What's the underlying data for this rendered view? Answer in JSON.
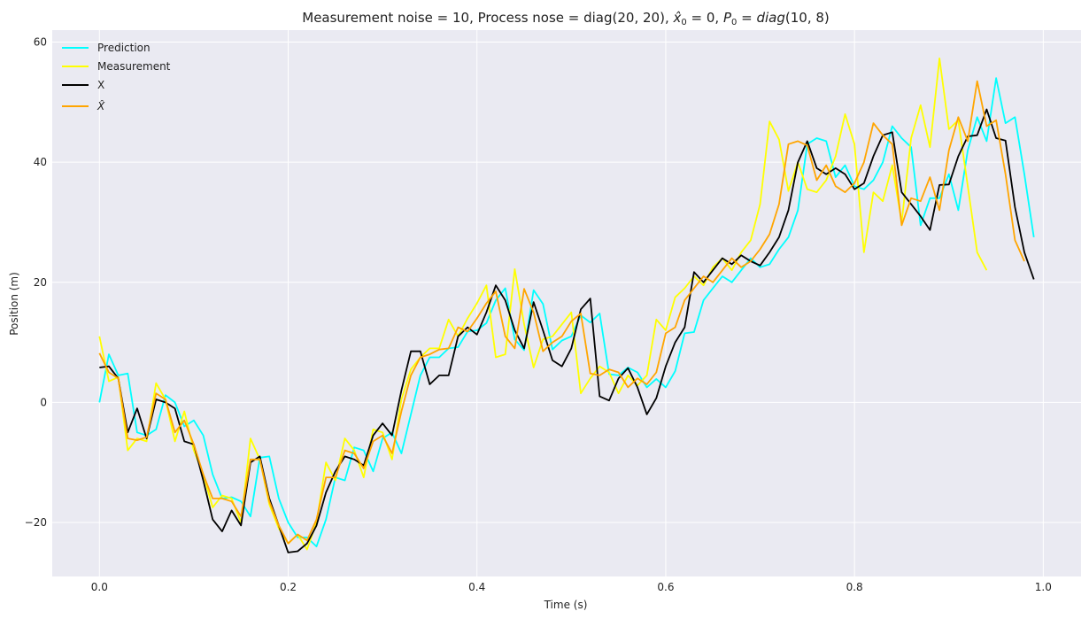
{
  "chart_data": {
    "type": "line",
    "title_parts": [
      "Measurement noise = 10, Process nose = diag(20, 20), ",
      "x̂",
      "0",
      " = 0, ",
      "P",
      "0",
      " = ",
      "diag",
      "(10, 8)"
    ],
    "xlabel": "Time (s)",
    "ylabel": "Position (m)",
    "xlim": [
      -0.05,
      1.04
    ],
    "ylim": [
      -29,
      62
    ],
    "xticks": [
      0.0,
      0.2,
      0.4,
      0.6,
      0.8,
      1.0
    ],
    "xtick_labels": [
      "0.0",
      "0.2",
      "0.4",
      "0.6",
      "0.8",
      "1.0"
    ],
    "yticks": [
      -20,
      0,
      20,
      40,
      60
    ],
    "ytick_labels": [
      "−20",
      "0",
      "20",
      "40",
      "60"
    ],
    "grid": true,
    "legend_position": "top-left",
    "background": "#eaeaf2",
    "series": [
      {
        "name": "Prediction",
        "color": "#00ffff",
        "legend_label": "Prediction",
        "values": [
          0.0,
          8.0,
          4.5,
          4.8,
          -5.0,
          -5.5,
          -4.5,
          1.2,
          0.0,
          -4.0,
          -3.0,
          -5.5,
          -12.0,
          -16.0,
          -15.8,
          -16.5,
          -19.0,
          -9.2,
          -9.0,
          -16.0,
          -20.0,
          -22.5,
          -22.5,
          -24.0,
          -19.5,
          -12.5,
          -13.0,
          -7.5,
          -8.0,
          -11.5,
          -6.0,
          -5.0,
          -8.5,
          -2.0,
          4.5,
          7.5,
          7.5,
          9.0,
          9.2,
          11.8,
          12.0,
          13.2,
          17.0,
          19.0,
          10.5,
          8.7,
          18.7,
          16.4,
          8.8,
          10.3,
          11.0,
          14.5,
          13.3,
          14.8,
          4.7,
          4.5,
          5.8,
          5.0,
          2.5,
          3.9,
          2.5,
          5.2,
          11.5,
          11.7,
          17.0,
          19.0,
          21.0,
          20.0,
          22.0,
          24.0,
          22.5,
          23.0,
          25.5,
          27.5,
          32.0,
          43.0,
          44.0,
          43.5,
          37.5,
          39.5,
          36.0,
          35.5,
          37.0,
          40.0,
          46.0,
          44.0,
          42.5,
          29.5,
          34.0,
          34.0,
          38.0,
          32.0,
          42.0,
          47.5,
          43.5,
          54.0,
          46.5,
          47.5,
          38.0,
          27.5
        ]
      },
      {
        "name": "Measurement",
        "color": "#ffff00",
        "legend_label": "Measurement",
        "values": [
          11.0,
          3.5,
          4.2,
          -8.0,
          -6.0,
          -6.5,
          3.2,
          0.5,
          -6.5,
          -1.5,
          -8.0,
          -12.0,
          -17.5,
          -15.5,
          -16.0,
          -20.0,
          -6.0,
          -9.5,
          -17.0,
          -21.0,
          -23.5,
          -22.0,
          -24.5,
          -20.0,
          -10.0,
          -13.0,
          -6.0,
          -8.0,
          -12.5,
          -4.5,
          -5.0,
          -9.5,
          0.5,
          5.5,
          7.5,
          9.0,
          9.0,
          13.8,
          11.0,
          14.0,
          16.5,
          19.5,
          7.5,
          8.0,
          22.2,
          13.0,
          5.8,
          10.5,
          11.0,
          13.0,
          15.0,
          1.5,
          4.0,
          6.0,
          5.0,
          1.5,
          4.5,
          2.8,
          4.5,
          13.8,
          12.0,
          17.5,
          19.0,
          21.0,
          19.5,
          22.5,
          24.0,
          22.0,
          25.0,
          27.0,
          33.0,
          46.8,
          43.8,
          35.2,
          40.0,
          35.5,
          35.0,
          37.0,
          41.0,
          48.0,
          43.0,
          25.0,
          35.0,
          33.5,
          39.5,
          30.0,
          44.0,
          49.5,
          42.5,
          57.3,
          45.5,
          47.0,
          36.0,
          25.0,
          22.0,
          null,
          null,
          null,
          null,
          null
        ]
      },
      {
        "name": "X",
        "color": "#000000",
        "legend_label": "X",
        "values": [
          5.8,
          6.0,
          4.0,
          -5.0,
          -1.0,
          -6.0,
          0.5,
          0.0,
          -1.0,
          -6.5,
          -7.0,
          -13.0,
          -19.5,
          -21.5,
          -18.0,
          -20.5,
          -10.0,
          -9.0,
          -16.0,
          -20.5,
          -25.0,
          -24.8,
          -23.5,
          -20.5,
          -15.0,
          -11.5,
          -9.0,
          -9.5,
          -10.5,
          -5.5,
          -3.5,
          -5.5,
          2.0,
          8.5,
          8.5,
          3.0,
          4.5,
          4.5,
          11.0,
          12.5,
          11.3,
          15.0,
          19.5,
          17.0,
          12.0,
          9.0,
          16.7,
          12.0,
          7.0,
          6.0,
          9.0,
          15.5,
          17.3,
          1.0,
          0.3,
          4.0,
          5.7,
          2.5,
          -2.0,
          0.7,
          6.0,
          10.0,
          12.5,
          21.7,
          20.0,
          22.0,
          24.0,
          23.0,
          24.5,
          23.5,
          22.8,
          25.0,
          27.5,
          32.0,
          40.0,
          43.5,
          39.0,
          38.0,
          39.0,
          38.0,
          35.5,
          36.5,
          41.0,
          44.5,
          45.0,
          35.0,
          33.0,
          31.0,
          28.7,
          36.2,
          36.3,
          41.0,
          44.3,
          44.5,
          48.8,
          44.0,
          43.6,
          32.5,
          25.0,
          20.5
        ]
      },
      {
        "name": "x̂",
        "color": "#ffa500",
        "legend_label": "X̂",
        "values": [
          8.2,
          5.0,
          4.0,
          -6.0,
          -6.3,
          -5.8,
          1.5,
          0.5,
          -5.0,
          -3.0,
          -7.0,
          -12.0,
          -16.0,
          -16.0,
          -16.5,
          -19.0,
          -9.5,
          -9.5,
          -16.5,
          -20.5,
          -23.5,
          -22.0,
          -23.0,
          -19.5,
          -12.5,
          -12.5,
          -8.0,
          -8.5,
          -11.0,
          -6.5,
          -5.5,
          -8.5,
          -1.5,
          4.5,
          7.5,
          8.0,
          8.8,
          9.0,
          12.5,
          11.8,
          14.0,
          16.5,
          18.5,
          11.0,
          9.0,
          18.9,
          15.0,
          8.5,
          10.0,
          11.0,
          13.5,
          14.8,
          4.8,
          4.5,
          5.5,
          5.0,
          2.5,
          4.0,
          3.0,
          5.0,
          11.5,
          12.5,
          17.0,
          19.0,
          21.0,
          20.0,
          22.0,
          24.0,
          22.5,
          23.5,
          25.5,
          28.0,
          33.0,
          43.0,
          43.5,
          42.8,
          37.0,
          39.5,
          36.0,
          35.0,
          36.5,
          40.0,
          46.5,
          44.5,
          43.0,
          29.5,
          34.0,
          33.5,
          37.5,
          32.0,
          42.0,
          47.5,
          43.5,
          53.5,
          46.0,
          47.0,
          38.0,
          27.0,
          23.5,
          null
        ]
      }
    ]
  }
}
